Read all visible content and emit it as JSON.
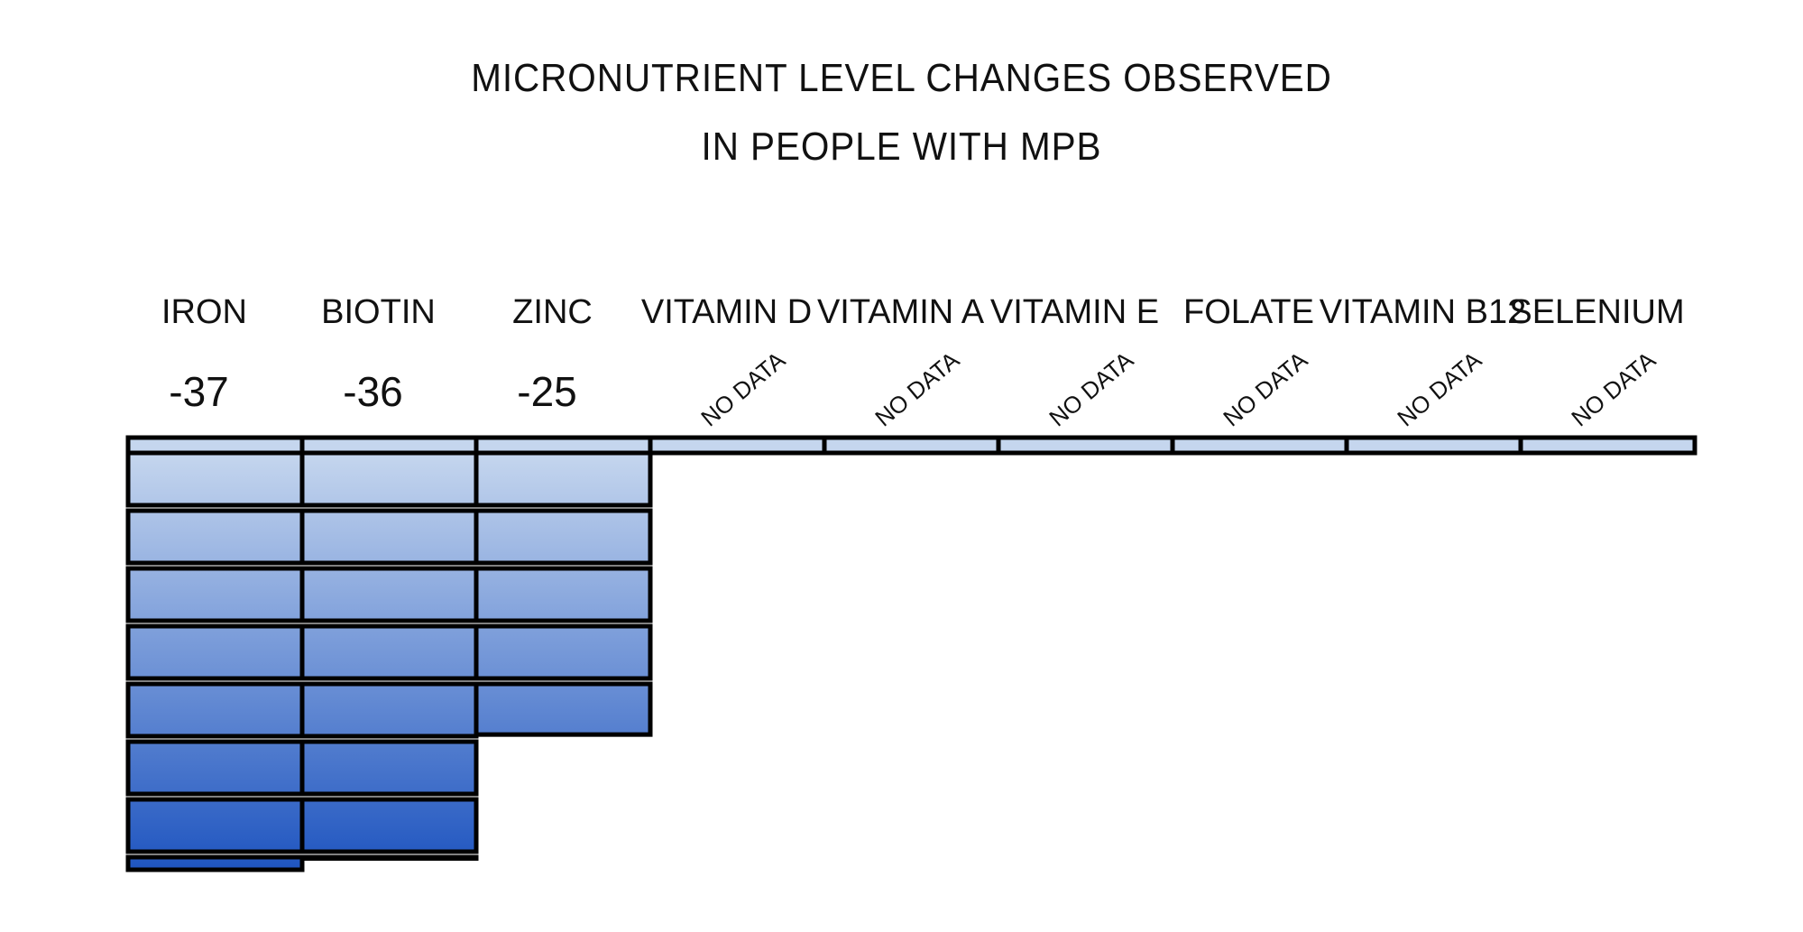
{
  "title_lines": [
    "MICRONUTRIENT LEVEL CHANGES OBSERVED",
    "IN PEOPLE WITH MPB"
  ],
  "chart_data": {
    "type": "bar",
    "title": "MICRONUTRIENT LEVEL CHANGES OBSERVED IN PEOPLE WITH MPB",
    "categories": [
      "IRON",
      "BIOTIN",
      "ZINC",
      "VITAMIN D",
      "VITAMIN A",
      "VITAMIN E",
      "FOLATE",
      "VITAMIN B12",
      "SELENIUM"
    ],
    "values": [
      -37,
      -36,
      -25,
      null,
      null,
      null,
      null,
      null,
      null
    ],
    "value_labels": [
      "-37",
      "-36",
      "-25",
      "NO DATA",
      "NO DATA",
      "NO DATA",
      "NO DATA",
      "NO DATA",
      "NO DATA"
    ],
    "ylim": [
      -37,
      0
    ],
    "grid": false,
    "bar_colors": {
      "top": "#c5d6ee",
      "bottom": "#1f55c0",
      "stroke": "#000000"
    }
  }
}
